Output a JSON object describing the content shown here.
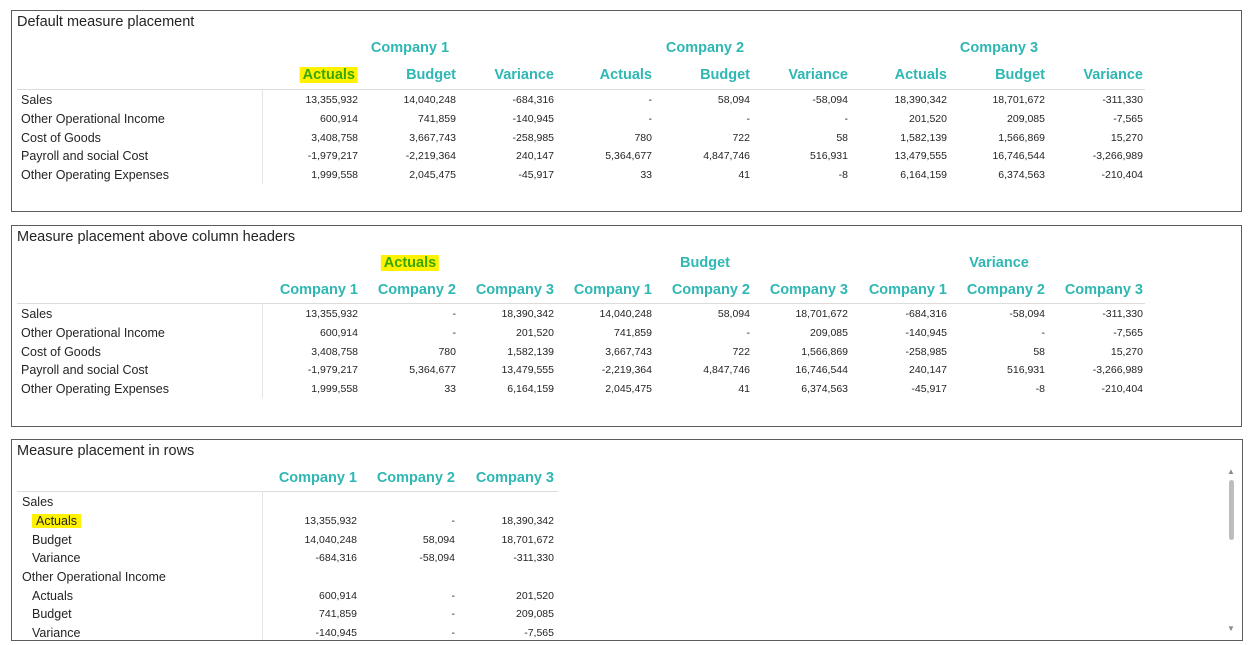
{
  "panel1": {
    "title": "Default measure placement",
    "companies": [
      "Company 1",
      "Company 2",
      "Company 3"
    ],
    "measures": [
      "Actuals",
      "Budget",
      "Variance"
    ],
    "rows": [
      "Sales",
      "Other Operational Income",
      "Cost of Goods",
      "Payroll and social Cost",
      "Other Operating Expenses"
    ],
    "values": [
      [
        "13,355,932",
        "14,040,248",
        "-684,316",
        "-",
        "58,094",
        "-58,094",
        "18,390,342",
        "18,701,672",
        "-311,330"
      ],
      [
        "600,914",
        "741,859",
        "-140,945",
        "-",
        "-",
        "-",
        "201,520",
        "209,085",
        "-7,565"
      ],
      [
        "3,408,758",
        "3,667,743",
        "-258,985",
        "780",
        "722",
        "58",
        "1,582,139",
        "1,566,869",
        "15,270"
      ],
      [
        "-1,979,217",
        "-2,219,364",
        "240,147",
        "5,364,677",
        "4,847,746",
        "516,931",
        "13,479,555",
        "16,746,544",
        "-3,266,989"
      ],
      [
        "1,999,558",
        "2,045,475",
        "-45,917",
        "33",
        "41",
        "-8",
        "6,164,159",
        "6,374,563",
        "-210,404"
      ]
    ]
  },
  "panel2": {
    "title": "Measure placement above column headers",
    "measures": [
      "Actuals",
      "Budget",
      "Variance"
    ],
    "companies": [
      "Company 1",
      "Company 2",
      "Company 3"
    ],
    "rows": [
      "Sales",
      "Other Operational Income",
      "Cost of Goods",
      "Payroll and social Cost",
      "Other Operating Expenses"
    ],
    "values": [
      [
        "13,355,932",
        "-",
        "18,390,342",
        "14,040,248",
        "58,094",
        "18,701,672",
        "-684,316",
        "-58,094",
        "-311,330"
      ],
      [
        "600,914",
        "-",
        "201,520",
        "741,859",
        "-",
        "209,085",
        "-140,945",
        "-",
        "-7,565"
      ],
      [
        "3,408,758",
        "780",
        "1,582,139",
        "3,667,743",
        "722",
        "1,566,869",
        "-258,985",
        "58",
        "15,270"
      ],
      [
        "-1,979,217",
        "5,364,677",
        "13,479,555",
        "-2,219,364",
        "4,847,746",
        "16,746,544",
        "240,147",
        "516,931",
        "-3,266,989"
      ],
      [
        "1,999,558",
        "33",
        "6,164,159",
        "2,045,475",
        "41",
        "6,374,563",
        "-45,917",
        "-8",
        "-210,404"
      ]
    ]
  },
  "panel3": {
    "title": "Measure placement in rows",
    "companies": [
      "Company 1",
      "Company 2",
      "Company 3"
    ],
    "rows": [
      {
        "label": "Sales",
        "level": 0,
        "values": []
      },
      {
        "label": "Actuals",
        "level": 1,
        "highlight": true,
        "values": [
          "13,355,932",
          "-",
          "18,390,342"
        ]
      },
      {
        "label": "Budget",
        "level": 1,
        "values": [
          "14,040,248",
          "58,094",
          "18,701,672"
        ]
      },
      {
        "label": "Variance",
        "level": 1,
        "values": [
          "-684,316",
          "-58,094",
          "-311,330"
        ]
      },
      {
        "label": "Other Operational Income",
        "level": 0,
        "values": []
      },
      {
        "label": "Actuals",
        "level": 1,
        "values": [
          "600,914",
          "-",
          "201,520"
        ]
      },
      {
        "label": "Budget",
        "level": 1,
        "values": [
          "741,859",
          "-",
          "209,085"
        ]
      },
      {
        "label": "Variance",
        "level": 1,
        "values": [
          "-140,945",
          "-",
          "-7,565"
        ]
      }
    ],
    "scrollbar": {
      "up_icon": "triangle-up",
      "down_icon": "triangle-down"
    }
  },
  "colors": {
    "header": "#2fb7b3",
    "highlight": "#fff200",
    "highlight_text": "#3aa700",
    "border": "#5c5c5c"
  }
}
